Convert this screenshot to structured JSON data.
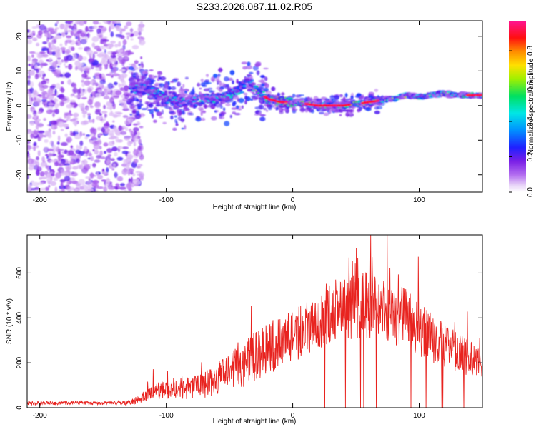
{
  "figure_title": "S233.2026.087.11.02.R05",
  "colors": {
    "snr_line": "#e8231f",
    "axis": "#000000",
    "background": "#ffffff"
  },
  "chart_data": [
    {
      "type": "heatmap",
      "title": "S233.2026.087.11.02.R05",
      "xlabel": "Height of straight line (km)",
      "ylabel": "Frequency (Hz)",
      "xlim": [
        -210,
        150
      ],
      "ylim": [
        -25,
        24.5
      ],
      "x_ticks": [
        {
          "value": -200,
          "label": "-200"
        },
        {
          "value": -100,
          "label": "-100"
        },
        {
          "value": 0,
          "label": "0"
        },
        {
          "value": 100,
          "label": "100"
        }
      ],
      "y_ticks": [
        {
          "value": -20,
          "label": "-20"
        },
        {
          "value": -10,
          "label": "-10"
        },
        {
          "value": 0,
          "label": "0"
        },
        {
          "value": 10,
          "label": "10"
        },
        {
          "value": 20,
          "label": "20"
        }
      ],
      "colorbar": {
        "label": "Normalized spectral amplitude",
        "range": [
          0,
          0.97
        ],
        "ticks": [
          {
            "value": 0.0,
            "label": "0.0"
          },
          {
            "value": 0.2,
            "label": "0.2"
          },
          {
            "value": 0.4,
            "label": "0.4"
          },
          {
            "value": 0.6,
            "label": "0.6"
          },
          {
            "value": 0.8,
            "label": "0.8"
          }
        ]
      },
      "ridge": {
        "height_km": [
          -130,
          -120,
          -110,
          -100,
          -90,
          -80,
          -70,
          -60,
          -50,
          -40,
          -35,
          -30,
          -20,
          -10,
          0,
          10,
          20,
          30,
          40,
          50,
          60,
          70,
          80,
          90,
          100,
          110,
          120,
          130,
          140,
          150
        ],
        "frequency_hz": [
          5,
          5,
          4,
          2,
          1,
          1,
          2,
          2,
          3,
          5,
          8,
          5,
          2,
          1,
          1,
          0.5,
          0,
          0,
          0,
          0.5,
          1,
          1.5,
          2,
          3,
          2.5,
          3,
          3.5,
          3,
          3,
          3
        ]
      },
      "noise_region_km": [
        -210,
        -125
      ]
    },
    {
      "type": "line",
      "xlabel": "Height of straight line (km)",
      "ylabel": "SNR (10 * v/v)",
      "xlim": [
        -210,
        150
      ],
      "ylim": [
        0,
        770
      ],
      "x_ticks": [
        {
          "value": -200,
          "label": "-200"
        },
        {
          "value": -100,
          "label": "-100"
        },
        {
          "value": 0,
          "label": "0"
        },
        {
          "value": 100,
          "label": "100"
        }
      ],
      "y_ticks": [
        {
          "value": 0,
          "label": "0"
        },
        {
          "value": 200,
          "label": "200"
        },
        {
          "value": 400,
          "label": "400"
        },
        {
          "value": 600,
          "label": "600"
        }
      ],
      "series": [
        {
          "name": "SNR",
          "x": [
            -210,
            -190,
            -170,
            -150,
            -130,
            -120,
            -110,
            -100,
            -90,
            -80,
            -70,
            -60,
            -50,
            -40,
            -30,
            -20,
            -10,
            0,
            10,
            20,
            30,
            40,
            50,
            60,
            70,
            80,
            90,
            100,
            110,
            120,
            130,
            140,
            150
          ],
          "y": [
            20,
            20,
            22,
            20,
            22,
            40,
            70,
            80,
            90,
            85,
            100,
            130,
            160,
            190,
            230,
            260,
            290,
            320,
            350,
            390,
            430,
            440,
            450,
            460,
            440,
            420,
            400,
            350,
            310,
            280,
            250,
            220,
            190
          ],
          "spread": [
            8,
            8,
            8,
            8,
            10,
            20,
            35,
            45,
            50,
            55,
            60,
            70,
            85,
            100,
            110,
            115,
            120,
            120,
            120,
            130,
            140,
            140,
            145,
            150,
            145,
            140,
            130,
            120,
            110,
            100,
            90,
            80,
            60
          ]
        }
      ]
    }
  ]
}
